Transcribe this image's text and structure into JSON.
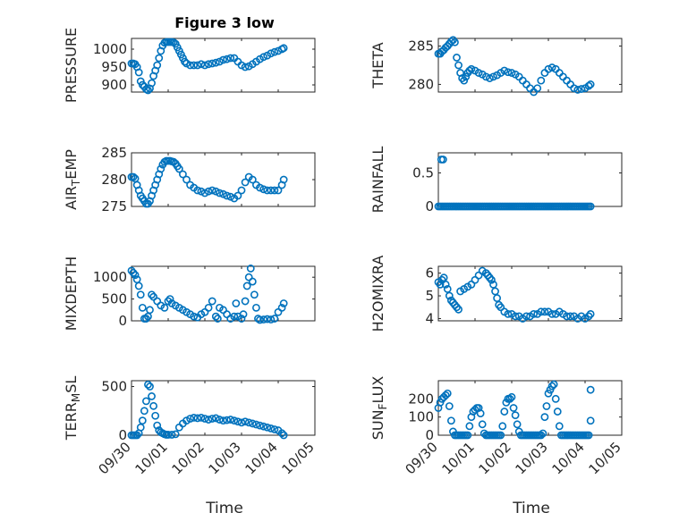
{
  "figure": {
    "title": "Figure 3 low",
    "marker_color": "#0072BD",
    "xlabel": "Time"
  },
  "chart_data": [
    {
      "type": "scatter",
      "ylabel": "PRESSURE",
      "ylim": [
        880,
        1030
      ],
      "yticks": [
        900,
        950,
        1000
      ],
      "ytick_labels": [
        "900",
        "950",
        "1000"
      ],
      "x": [
        0.0,
        0.05,
        0.1,
        0.15,
        0.2,
        0.25,
        0.3,
        0.35,
        0.4,
        0.45,
        0.5,
        0.55,
        0.6,
        0.65,
        0.7,
        0.75,
        0.8,
        0.85,
        0.9,
        0.95,
        1.0,
        1.05,
        1.1,
        1.15,
        1.2,
        1.25,
        1.3,
        1.35,
        1.4,
        1.45,
        1.5,
        1.6,
        1.7,
        1.8,
        1.9,
        2.0,
        2.1,
        2.2,
        2.3,
        2.4,
        2.5,
        2.6,
        2.7,
        2.8,
        2.9,
        3.0,
        3.1,
        3.2,
        3.3,
        3.4,
        3.5,
        3.6,
        3.7,
        3.8,
        3.9,
        4.0,
        4.1,
        4.15
      ],
      "y": [
        960,
        960,
        958,
        950,
        935,
        910,
        900,
        895,
        888,
        885,
        890,
        905,
        925,
        940,
        955,
        975,
        995,
        1010,
        1018,
        1020,
        1020,
        1020,
        1020,
        1019,
        1015,
        1005,
        995,
        985,
        975,
        965,
        960,
        955,
        955,
        955,
        958,
        955,
        958,
        960,
        962,
        965,
        970,
        972,
        975,
        975,
        965,
        955,
        950,
        952,
        958,
        965,
        972,
        978,
        982,
        988,
        992,
        995,
        1000,
        1003
      ]
    },
    {
      "type": "scatter",
      "ylabel": "THETA",
      "ylim": [
        279,
        286
      ],
      "yticks": [
        280,
        285
      ],
      "ytick_labels": [
        "280",
        "285"
      ],
      "x": [
        0.0,
        0.05,
        0.1,
        0.15,
        0.2,
        0.25,
        0.3,
        0.35,
        0.4,
        0.45,
        0.5,
        0.55,
        0.6,
        0.65,
        0.7,
        0.75,
        0.8,
        0.85,
        0.9,
        1.0,
        1.1,
        1.2,
        1.3,
        1.4,
        1.5,
        1.6,
        1.7,
        1.8,
        1.9,
        2.0,
        2.1,
        2.2,
        2.3,
        2.4,
        2.5,
        2.6,
        2.7,
        2.8,
        2.9,
        3.0,
        3.1,
        3.2,
        3.3,
        3.4,
        3.5,
        3.6,
        3.7,
        3.8,
        3.9,
        4.0,
        4.1,
        4.15
      ],
      "y": [
        284.0,
        284.0,
        284.3,
        284.5,
        284.8,
        285.0,
        285.3,
        285.6,
        285.8,
        285.5,
        283.5,
        282.5,
        281.5,
        280.8,
        280.5,
        281.0,
        281.5,
        281.8,
        282.0,
        281.8,
        281.5,
        281.3,
        281.0,
        280.8,
        281.0,
        281.2,
        281.5,
        281.8,
        281.6,
        281.5,
        281.3,
        281.0,
        280.5,
        280.0,
        279.5,
        279.0,
        279.5,
        280.5,
        281.5,
        282.0,
        282.2,
        282.0,
        281.5,
        281.0,
        280.5,
        280.0,
        279.5,
        279.3,
        279.4,
        279.5,
        279.8,
        280.0
      ]
    },
    {
      "type": "scatter",
      "ylabel": "AIR_TEMP",
      "ylim": [
        275,
        285
      ],
      "yticks": [
        275,
        280,
        285
      ],
      "ytick_labels": [
        "275",
        "280",
        "285"
      ],
      "x": [
        0.0,
        0.05,
        0.1,
        0.15,
        0.2,
        0.25,
        0.3,
        0.35,
        0.4,
        0.45,
        0.5,
        0.55,
        0.6,
        0.65,
        0.7,
        0.75,
        0.8,
        0.85,
        0.9,
        0.95,
        1.0,
        1.05,
        1.1,
        1.15,
        1.2,
        1.25,
        1.3,
        1.4,
        1.5,
        1.6,
        1.7,
        1.8,
        1.9,
        2.0,
        2.1,
        2.2,
        2.3,
        2.4,
        2.5,
        2.6,
        2.7,
        2.8,
        2.9,
        3.0,
        3.1,
        3.2,
        3.3,
        3.4,
        3.5,
        3.6,
        3.7,
        3.8,
        3.9,
        4.0,
        4.1,
        4.15
      ],
      "y": [
        280.5,
        280.5,
        280.2,
        279.0,
        278.0,
        277.0,
        276.5,
        276.0,
        275.5,
        275.5,
        276.0,
        277.0,
        278.0,
        279.0,
        280.0,
        281.0,
        282.0,
        282.8,
        283.3,
        283.5,
        283.5,
        283.5,
        283.4,
        283.3,
        283.0,
        282.5,
        282.0,
        281.0,
        280.0,
        279.0,
        278.5,
        278.0,
        277.8,
        277.5,
        277.8,
        278.0,
        277.8,
        277.5,
        277.3,
        277.0,
        276.8,
        276.5,
        277.0,
        278.0,
        279.5,
        280.5,
        280.0,
        279.0,
        278.5,
        278.2,
        278.0,
        278.0,
        278.0,
        278.0,
        279.0,
        280.0
      ]
    },
    {
      "type": "scatter",
      "ylabel": "RAINFALL",
      "ylim": [
        0,
        0.8
      ],
      "yticks": [
        0,
        0.5
      ],
      "ytick_labels": [
        "0",
        "0.5"
      ],
      "x": [
        0.0,
        0.05,
        0.1,
        0.15,
        0.2,
        0.25,
        0.3,
        0.35,
        0.4,
        0.45,
        0.5,
        0.55,
        0.6,
        0.65,
        0.7,
        0.75,
        0.8,
        0.85,
        0.9,
        0.95,
        1.0,
        1.05,
        1.1,
        1.15,
        1.2,
        1.25,
        1.3,
        1.35,
        1.4,
        1.45,
        1.5,
        1.55,
        1.6,
        1.65,
        1.7,
        1.75,
        1.8,
        1.85,
        1.9,
        1.95,
        2.0,
        2.05,
        2.1,
        2.15,
        2.2,
        2.25,
        2.3,
        2.35,
        2.4,
        2.45,
        2.5,
        2.55,
        2.6,
        2.65,
        2.7,
        2.75,
        2.8,
        2.85,
        2.9,
        2.95,
        3.0,
        3.05,
        3.1,
        3.15,
        3.2,
        3.25,
        3.3,
        3.35,
        3.4,
        3.45,
        3.5,
        3.55,
        3.6,
        3.65,
        3.7,
        3.75,
        3.8,
        3.85,
        3.9,
        3.95,
        4.0,
        4.05,
        4.1,
        4.15,
        0.08,
        0.13
      ],
      "y": [
        0,
        0,
        0,
        0,
        0,
        0,
        0,
        0,
        0,
        0,
        0,
        0,
        0,
        0,
        0,
        0,
        0,
        0,
        0,
        0,
        0,
        0,
        0,
        0,
        0,
        0,
        0,
        0,
        0,
        0,
        0,
        0,
        0,
        0,
        0,
        0,
        0,
        0,
        0,
        0,
        0,
        0,
        0,
        0,
        0,
        0,
        0,
        0,
        0,
        0,
        0,
        0,
        0,
        0,
        0,
        0,
        0,
        0,
        0,
        0,
        0,
        0,
        0,
        0,
        0,
        0,
        0,
        0,
        0,
        0,
        0,
        0,
        0,
        0,
        0,
        0,
        0,
        0,
        0,
        0,
        0,
        0,
        0,
        0,
        0.7,
        0.7
      ]
    },
    {
      "type": "scatter",
      "ylabel": "MIXDEPTH",
      "ylim": [
        0,
        1250
      ],
      "yticks": [
        0,
        500,
        1000
      ],
      "ytick_labels": [
        "0",
        "500",
        "1000"
      ],
      "x": [
        0.0,
        0.05,
        0.1,
        0.15,
        0.2,
        0.25,
        0.3,
        0.35,
        0.4,
        0.45,
        0.5,
        0.55,
        0.6,
        0.7,
        0.8,
        0.9,
        1.0,
        1.05,
        1.1,
        1.2,
        1.3,
        1.4,
        1.5,
        1.6,
        1.7,
        1.8,
        1.9,
        2.0,
        2.1,
        2.2,
        2.3,
        2.35,
        2.4,
        2.5,
        2.6,
        2.7,
        2.8,
        2.85,
        2.9,
        3.0,
        3.05,
        3.1,
        3.15,
        3.2,
        3.25,
        3.3,
        3.35,
        3.4,
        3.45,
        3.5,
        3.6,
        3.7,
        3.8,
        3.9,
        4.0,
        4.1,
        4.15
      ],
      "y": [
        1150,
        1100,
        1050,
        950,
        800,
        600,
        300,
        50,
        50,
        100,
        250,
        600,
        550,
        450,
        350,
        300,
        450,
        500,
        400,
        350,
        300,
        250,
        200,
        150,
        100,
        80,
        150,
        200,
        300,
        450,
        100,
        50,
        300,
        250,
        150,
        50,
        100,
        400,
        100,
        50,
        150,
        450,
        800,
        1000,
        1200,
        900,
        600,
        300,
        50,
        20,
        30,
        40,
        30,
        50,
        200,
        300,
        400
      ]
    },
    {
      "type": "scatter",
      "ylabel": "H2OMIXRA",
      "ylim": [
        3.9,
        6.3
      ],
      "yticks": [
        4,
        5,
        6
      ],
      "ytick_labels": [
        "4",
        "5",
        "6"
      ],
      "x": [
        0.0,
        0.05,
        0.1,
        0.15,
        0.2,
        0.25,
        0.3,
        0.35,
        0.4,
        0.45,
        0.5,
        0.55,
        0.6,
        0.7,
        0.8,
        0.9,
        1.0,
        1.1,
        1.2,
        1.3,
        1.35,
        1.4,
        1.45,
        1.5,
        1.55,
        1.6,
        1.65,
        1.7,
        1.8,
        1.9,
        2.0,
        2.1,
        2.2,
        2.3,
        2.4,
        2.5,
        2.6,
        2.7,
        2.8,
        2.9,
        3.0,
        3.1,
        3.2,
        3.3,
        3.4,
        3.5,
        3.6,
        3.7,
        3.8,
        3.9,
        4.0,
        4.1,
        4.15
      ],
      "y": [
        5.6,
        5.5,
        5.7,
        5.8,
        5.5,
        5.3,
        5.0,
        4.8,
        4.7,
        4.6,
        4.5,
        4.4,
        5.2,
        5.3,
        5.4,
        5.5,
        5.7,
        5.9,
        6.1,
        6.0,
        5.9,
        5.8,
        5.7,
        5.5,
        5.2,
        4.9,
        4.6,
        4.5,
        4.3,
        4.2,
        4.2,
        4.1,
        4.1,
        4.0,
        4.1,
        4.1,
        4.2,
        4.2,
        4.3,
        4.3,
        4.3,
        4.2,
        4.2,
        4.3,
        4.2,
        4.1,
        4.1,
        4.1,
        4.0,
        4.1,
        4.0,
        4.1,
        4.2
      ]
    },
    {
      "type": "scatter",
      "ylabel": "TERR_MSL",
      "ylim": [
        0,
        560
      ],
      "yticks": [
        0,
        500
      ],
      "ytick_labels": [
        "0",
        "500"
      ],
      "x": [
        0.0,
        0.05,
        0.1,
        0.15,
        0.2,
        0.25,
        0.3,
        0.35,
        0.4,
        0.45,
        0.5,
        0.55,
        0.6,
        0.65,
        0.7,
        0.75,
        0.8,
        0.85,
        0.9,
        0.95,
        1.0,
        1.1,
        1.2,
        1.3,
        1.4,
        1.5,
        1.6,
        1.7,
        1.8,
        1.9,
        2.0,
        2.1,
        2.2,
        2.3,
        2.4,
        2.5,
        2.6,
        2.7,
        2.8,
        2.9,
        3.0,
        3.1,
        3.2,
        3.3,
        3.4,
        3.5,
        3.6,
        3.7,
        3.8,
        3.9,
        4.0,
        4.1,
        4.15
      ],
      "y": [
        0,
        0,
        0,
        0,
        20,
        80,
        150,
        250,
        350,
        520,
        500,
        400,
        300,
        200,
        100,
        50,
        30,
        20,
        10,
        5,
        5,
        5,
        10,
        80,
        120,
        150,
        170,
        180,
        175,
        180,
        170,
        160,
        170,
        175,
        160,
        150,
        155,
        160,
        150,
        140,
        130,
        140,
        130,
        120,
        110,
        100,
        90,
        80,
        70,
        60,
        50,
        20,
        0
      ]
    },
    {
      "type": "scatter",
      "ylabel": "SUN_FLUX",
      "ylim": [
        0,
        300
      ],
      "yticks": [
        0,
        100,
        200
      ],
      "ytick_labels": [
        "0",
        "100",
        "200"
      ],
      "x": [
        0.0,
        0.05,
        0.1,
        0.15,
        0.2,
        0.25,
        0.3,
        0.35,
        0.4,
        0.45,
        0.5,
        0.55,
        0.6,
        0.65,
        0.7,
        0.75,
        0.8,
        0.85,
        0.9,
        0.95,
        1.0,
        1.05,
        1.1,
        1.15,
        1.2,
        1.25,
        1.3,
        1.35,
        1.4,
        1.45,
        1.5,
        1.55,
        1.6,
        1.65,
        1.7,
        1.75,
        1.8,
        1.85,
        1.9,
        1.95,
        2.0,
        2.05,
        2.1,
        2.15,
        2.2,
        2.25,
        2.3,
        2.35,
        2.4,
        2.45,
        2.5,
        2.55,
        2.6,
        2.65,
        2.7,
        2.75,
        2.8,
        2.85,
        2.9,
        2.95,
        3.0,
        3.05,
        3.1,
        3.15,
        3.2,
        3.25,
        3.3,
        3.35,
        3.4,
        3.45,
        3.5,
        3.55,
        3.6,
        3.65,
        3.7,
        3.75,
        3.8,
        3.85,
        3.9,
        3.95,
        4.0,
        4.05,
        4.1,
        4.15,
        4.15
      ],
      "y": [
        150,
        180,
        200,
        210,
        220,
        230,
        160,
        80,
        20,
        0,
        0,
        0,
        0,
        0,
        0,
        0,
        0,
        50,
        100,
        130,
        140,
        150,
        150,
        120,
        60,
        10,
        0,
        0,
        0,
        0,
        0,
        0,
        0,
        0,
        0,
        50,
        130,
        180,
        200,
        200,
        210,
        150,
        110,
        60,
        20,
        0,
        0,
        0,
        0,
        0,
        0,
        0,
        0,
        0,
        0,
        0,
        0,
        10,
        100,
        160,
        230,
        250,
        270,
        280,
        200,
        130,
        50,
        0,
        0,
        0,
        0,
        0,
        0,
        0,
        0,
        0,
        0,
        0,
        0,
        0,
        0,
        0,
        0,
        80,
        250
      ]
    }
  ],
  "shared_xaxis": {
    "xlim": [
      0,
      5
    ],
    "ticks": [
      0,
      1,
      2,
      3,
      4,
      5
    ],
    "tick_labels": [
      "09/30",
      "10/01",
      "10/02",
      "10/03",
      "10/04",
      "10/05"
    ]
  }
}
